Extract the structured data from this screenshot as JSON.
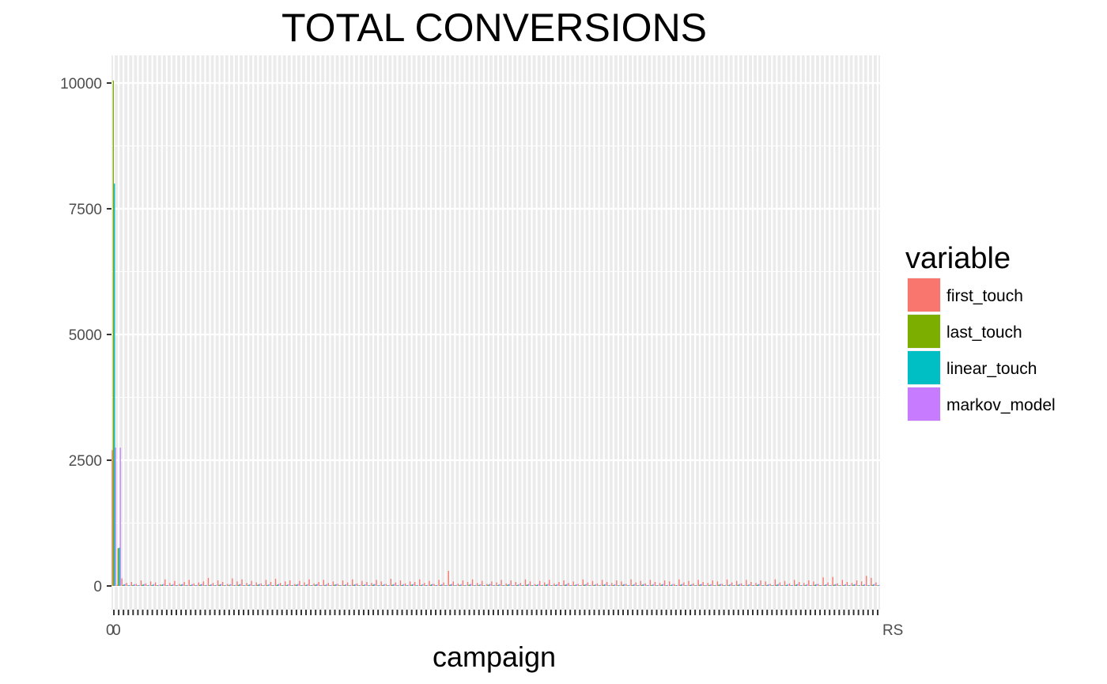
{
  "chart_data": {
    "type": "bar",
    "title": "TOTAL CONVERSIONS",
    "xlabel": "campaign",
    "ylabel": "",
    "ylim": [
      0,
      10500
    ],
    "yticks": [
      0,
      2500,
      5000,
      7500,
      10000
    ],
    "grid": true,
    "legend": {
      "title": "variable",
      "position": "right"
    },
    "x_tick_labels": {
      "first": "0",
      "second": "0",
      "last": "RS"
    },
    "num_categories": 160,
    "series": [
      {
        "name": "first_touch",
        "color": "#F8766D",
        "values": [
          2700,
          20,
          150,
          60,
          80,
          40,
          110,
          50,
          90,
          70,
          30,
          130,
          60,
          100,
          40,
          80,
          120,
          50,
          70,
          90,
          160,
          60,
          110,
          80,
          40,
          150,
          90,
          130,
          60,
          100,
          70,
          50,
          120,
          80,
          140,
          60,
          90,
          110,
          40,
          100,
          70,
          130,
          50,
          80,
          120,
          60,
          90,
          40,
          110,
          70,
          130,
          50,
          100,
          80,
          60,
          120,
          90,
          40,
          140,
          70,
          110,
          50,
          90,
          80,
          130,
          60,
          100,
          40,
          120,
          70,
          300,
          90,
          50,
          110,
          80,
          130,
          60,
          100,
          40,
          90,
          70,
          120,
          50,
          110,
          80,
          60,
          130,
          90,
          40,
          100,
          70,
          120,
          50,
          80,
          110,
          60,
          90,
          40,
          130,
          70,
          100,
          50,
          120,
          80,
          60,
          110,
          90,
          40,
          130,
          70,
          100,
          50,
          120,
          80,
          60,
          110,
          90,
          40,
          130,
          70,
          100,
          50,
          120,
          80,
          60,
          110,
          90,
          40,
          130,
          70,
          100,
          50,
          120,
          80,
          60,
          110,
          90,
          40,
          130,
          70,
          100,
          50,
          120,
          80,
          60,
          110,
          90,
          40,
          170,
          70,
          180,
          50,
          120,
          80,
          60,
          110,
          90,
          200,
          160,
          70
        ]
      },
      {
        "name": "last_touch",
        "color": "#7CAE00",
        "values": [
          10050,
          750,
          20,
          10,
          15,
          10,
          20,
          10,
          15,
          10,
          20,
          10,
          15,
          10,
          20,
          10,
          15,
          10,
          20,
          10,
          15,
          10,
          20,
          10,
          15,
          10,
          20,
          10,
          15,
          10,
          20,
          10,
          15,
          10,
          20,
          10,
          15,
          10,
          20,
          10,
          15,
          10,
          20,
          10,
          15,
          10,
          20,
          10,
          15,
          10,
          20,
          10,
          15,
          10,
          20,
          10,
          15,
          10,
          20,
          10,
          15,
          10,
          20,
          10,
          15,
          10,
          20,
          10,
          15,
          10,
          20,
          10,
          15,
          10,
          20,
          10,
          15,
          10,
          20,
          10,
          15,
          10,
          20,
          10,
          15,
          10,
          20,
          10,
          15,
          10,
          20,
          10,
          15,
          10,
          20,
          10,
          15,
          10,
          20,
          10,
          15,
          10,
          20,
          10,
          15,
          10,
          20,
          10,
          15,
          10,
          20,
          10,
          15,
          10,
          20,
          10,
          15,
          10,
          20,
          10,
          15,
          10,
          20,
          10,
          15,
          10,
          20,
          10,
          15,
          10,
          20,
          10,
          15,
          10,
          20,
          10,
          15,
          10,
          20,
          10,
          15,
          10,
          20,
          10,
          15,
          10,
          20,
          10,
          15,
          10,
          20,
          10,
          15,
          10,
          20,
          10,
          15,
          10,
          20,
          10
        ]
      },
      {
        "name": "linear_touch",
        "color": "#00BFC4",
        "values": [
          8000,
          760,
          30,
          15,
          25,
          15,
          30,
          15,
          25,
          15,
          30,
          15,
          25,
          15,
          30,
          15,
          25,
          15,
          30,
          15,
          25,
          15,
          30,
          15,
          25,
          15,
          30,
          15,
          25,
          15,
          30,
          15,
          25,
          15,
          30,
          15,
          25,
          15,
          30,
          15,
          25,
          15,
          30,
          15,
          25,
          15,
          30,
          15,
          25,
          15,
          30,
          15,
          25,
          15,
          30,
          15,
          25,
          15,
          30,
          15,
          25,
          15,
          30,
          15,
          25,
          15,
          30,
          15,
          25,
          15,
          30,
          15,
          25,
          15,
          30,
          15,
          25,
          15,
          30,
          15,
          25,
          15,
          30,
          15,
          25,
          15,
          30,
          15,
          25,
          15,
          30,
          15,
          25,
          15,
          30,
          15,
          25,
          15,
          30,
          15,
          25,
          15,
          30,
          15,
          25,
          15,
          30,
          15,
          25,
          15,
          30,
          15,
          25,
          15,
          30,
          15,
          25,
          15,
          30,
          15,
          25,
          15,
          30,
          15,
          25,
          15,
          30,
          15,
          25,
          15,
          30,
          15,
          25,
          15,
          30,
          15,
          25,
          15,
          30,
          15,
          25,
          15,
          30,
          15,
          25,
          15,
          30,
          15,
          25,
          15,
          30,
          15,
          25,
          15,
          30,
          15,
          25,
          15,
          30,
          15
        ]
      },
      {
        "name": "markov_model",
        "color": "#C77CFF",
        "values": [
          2750,
          2750,
          40,
          20,
          35,
          20,
          40,
          20,
          35,
          20,
          40,
          20,
          35,
          20,
          40,
          20,
          35,
          20,
          40,
          20,
          35,
          20,
          40,
          20,
          35,
          20,
          40,
          20,
          35,
          20,
          40,
          20,
          35,
          20,
          40,
          20,
          35,
          20,
          40,
          20,
          35,
          20,
          40,
          20,
          35,
          20,
          40,
          20,
          35,
          20,
          40,
          20,
          35,
          20,
          40,
          20,
          35,
          20,
          40,
          20,
          35,
          20,
          40,
          20,
          35,
          20,
          40,
          20,
          35,
          20,
          40,
          20,
          35,
          20,
          40,
          20,
          35,
          20,
          40,
          20,
          35,
          20,
          40,
          20,
          35,
          20,
          40,
          20,
          35,
          20,
          40,
          20,
          35,
          20,
          40,
          20,
          35,
          20,
          40,
          20,
          35,
          20,
          40,
          20,
          35,
          20,
          40,
          20,
          35,
          20,
          40,
          20,
          35,
          20,
          40,
          20,
          35,
          20,
          40,
          20,
          35,
          20,
          40,
          20,
          35,
          20,
          40,
          20,
          35,
          20,
          40,
          20,
          35,
          20,
          40,
          20,
          35,
          20,
          40,
          20,
          35,
          20,
          40,
          20,
          35,
          20,
          40,
          20,
          35,
          20,
          40,
          20,
          35,
          20,
          40,
          20,
          35,
          20,
          40,
          20
        ]
      }
    ]
  }
}
